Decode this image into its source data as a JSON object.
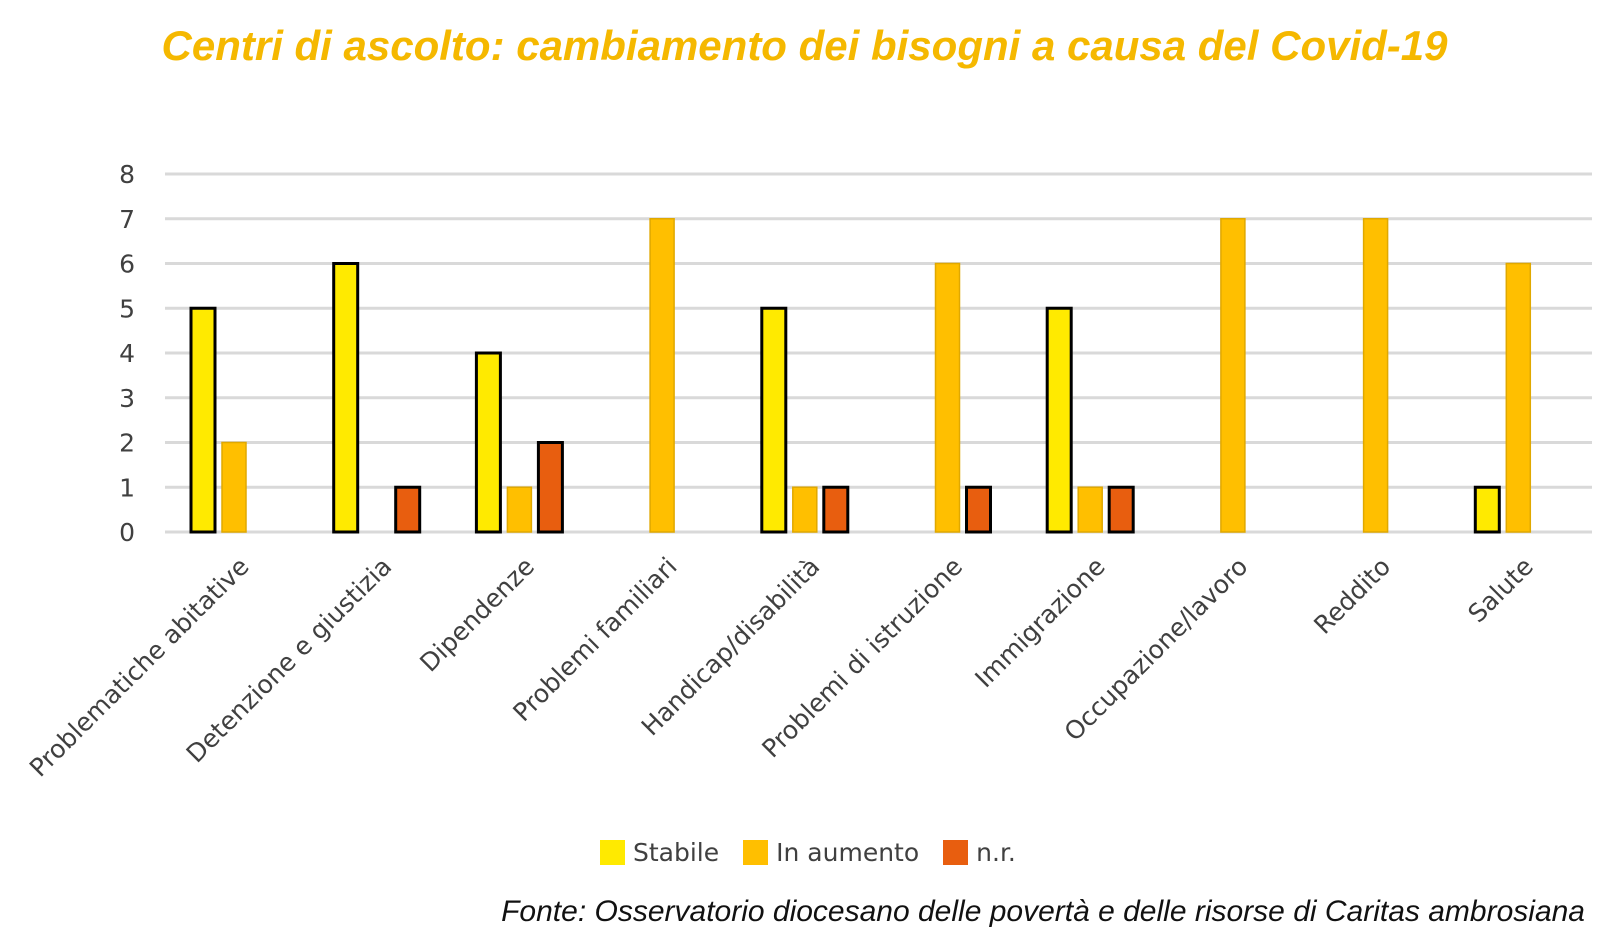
{
  "chart_data": {
    "type": "bar",
    "title": "Centri di ascolto: cambiamento dei bisogni a causa del Covid-19",
    "xlabel": "",
    "ylabel": "",
    "ylim": [
      0,
      8
    ],
    "yticks": [
      "0",
      "1",
      "2",
      "3",
      "4",
      "5",
      "6",
      "7",
      "8"
    ],
    "grid": true,
    "legend_position": "bottom",
    "categories": [
      "Problematiche abitative",
      "Detenzione e giustizia",
      "Dipendenze",
      "Problemi familiari",
      "Handicap/disabilità",
      "Problemi di istruzione",
      "Immigrazione",
      "Occupazione/lavoro",
      "Reddito",
      "Salute"
    ],
    "series": [
      {
        "name": "Stabile",
        "color": "#FFEA00",
        "values": [
          5,
          6,
          4,
          0,
          5,
          0,
          5,
          0,
          0,
          1
        ]
      },
      {
        "name": "In aumento",
        "color": "#FFBF00",
        "values": [
          2,
          0,
          1,
          7,
          1,
          6,
          1,
          7,
          7,
          6
        ]
      },
      {
        "name": "n.r.",
        "color": "#E85E0F",
        "values": [
          0,
          1,
          2,
          0,
          1,
          1,
          1,
          0,
          0,
          0
        ]
      }
    ],
    "source": "Fonte: Osservatorio diocesano delle povertà e delle risorse di Caritas ambrosiana"
  }
}
